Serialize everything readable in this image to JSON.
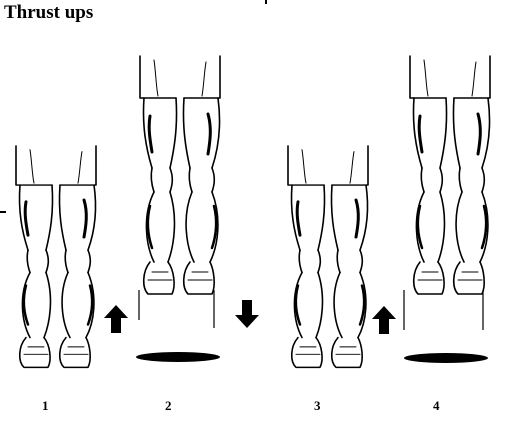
{
  "title": "Thrust ups",
  "steps": [
    {
      "label": "1",
      "direction": "up",
      "phase": "ground"
    },
    {
      "label": "2",
      "direction": "down",
      "phase": "air"
    },
    {
      "label": "3",
      "direction": "up",
      "phase": "ground"
    },
    {
      "label": "4",
      "direction": "none",
      "phase": "air"
    }
  ],
  "colors": {
    "ink": "#000000",
    "background": "#ffffff"
  }
}
